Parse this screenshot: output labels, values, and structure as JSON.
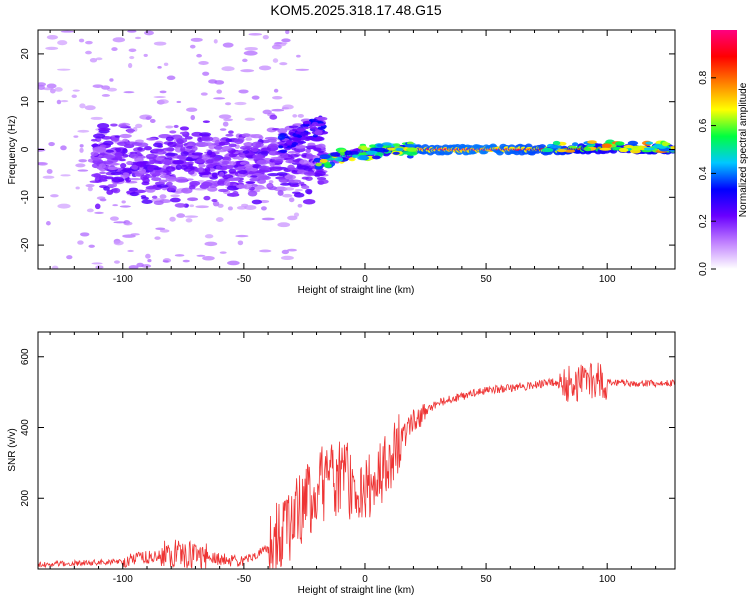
{
  "figure": {
    "title": "KOM5.2025.318.17.48.G15"
  },
  "chart_data": [
    {
      "type": "heatmap",
      "title": "KOM5.2025.318.17.48.G15",
      "xlabel": "Height of straight line (km)",
      "ylabel": "Frequency (Hz)",
      "xlim": [
        -135,
        128
      ],
      "ylim": [
        -25,
        25
      ],
      "xticks": [
        -100,
        -50,
        0,
        50,
        100
      ],
      "yticks": [
        -20,
        -10,
        0,
        10,
        20
      ],
      "colorbar": {
        "label": "Normalized spectral amplitude",
        "range": [
          0,
          1
        ],
        "ticks": [
          0.0,
          0.2,
          0.4,
          0.6,
          0.8
        ],
        "tick_labels": [
          "0.0",
          "0.2",
          "0.4",
          "0.6",
          "0.8"
        ],
        "colors": [
          "#ffffff",
          "#c080ff",
          "#6a00ff",
          "#0000ff",
          "#00c8ff",
          "#00ff40",
          "#ffff00",
          "#ff8000",
          "#ff0000",
          "#ff0080"
        ]
      },
      "ridge": [
        {
          "x": -20,
          "f": -2.5,
          "amp": 0.3
        },
        {
          "x": -10,
          "f": -1.5,
          "amp": 0.45
        },
        {
          "x": 0,
          "f": -0.5,
          "amp": 0.6
        },
        {
          "x": 10,
          "f": -0.2,
          "amp": 0.7
        },
        {
          "x": 20,
          "f": 0,
          "amp": 0.95
        },
        {
          "x": 50,
          "f": 0,
          "amp": 1.0
        },
        {
          "x": 80,
          "f": 0,
          "amp": 0.9
        },
        {
          "x": 100,
          "f": 0.3,
          "amp": 0.75
        },
        {
          "x": 128,
          "f": 0,
          "amp": 0.85
        }
      ]
    },
    {
      "type": "line",
      "xlabel": "Height of straight line (km)",
      "ylabel": "SNR (v/v)",
      "xlim": [
        -135,
        128
      ],
      "ylim": [
        0,
        670
      ],
      "xticks": [
        -100,
        -50,
        0,
        50,
        100
      ],
      "yticks": [
        200,
        400,
        600
      ],
      "series": [
        {
          "name": "SNR",
          "color": "#ee3333",
          "envelope_x": [
            -135,
            -100,
            -80,
            -60,
            -50,
            -40,
            -30,
            -20,
            -10,
            0,
            10,
            20,
            30,
            50,
            70,
            80,
            85,
            90,
            95,
            100,
            110,
            128
          ],
          "envelope_y": [
            12,
            22,
            45,
            28,
            22,
            60,
            130,
            230,
            260,
            220,
            300,
            420,
            470,
            505,
            520,
            530,
            520,
            530,
            530,
            530,
            525,
            525
          ]
        }
      ]
    }
  ]
}
